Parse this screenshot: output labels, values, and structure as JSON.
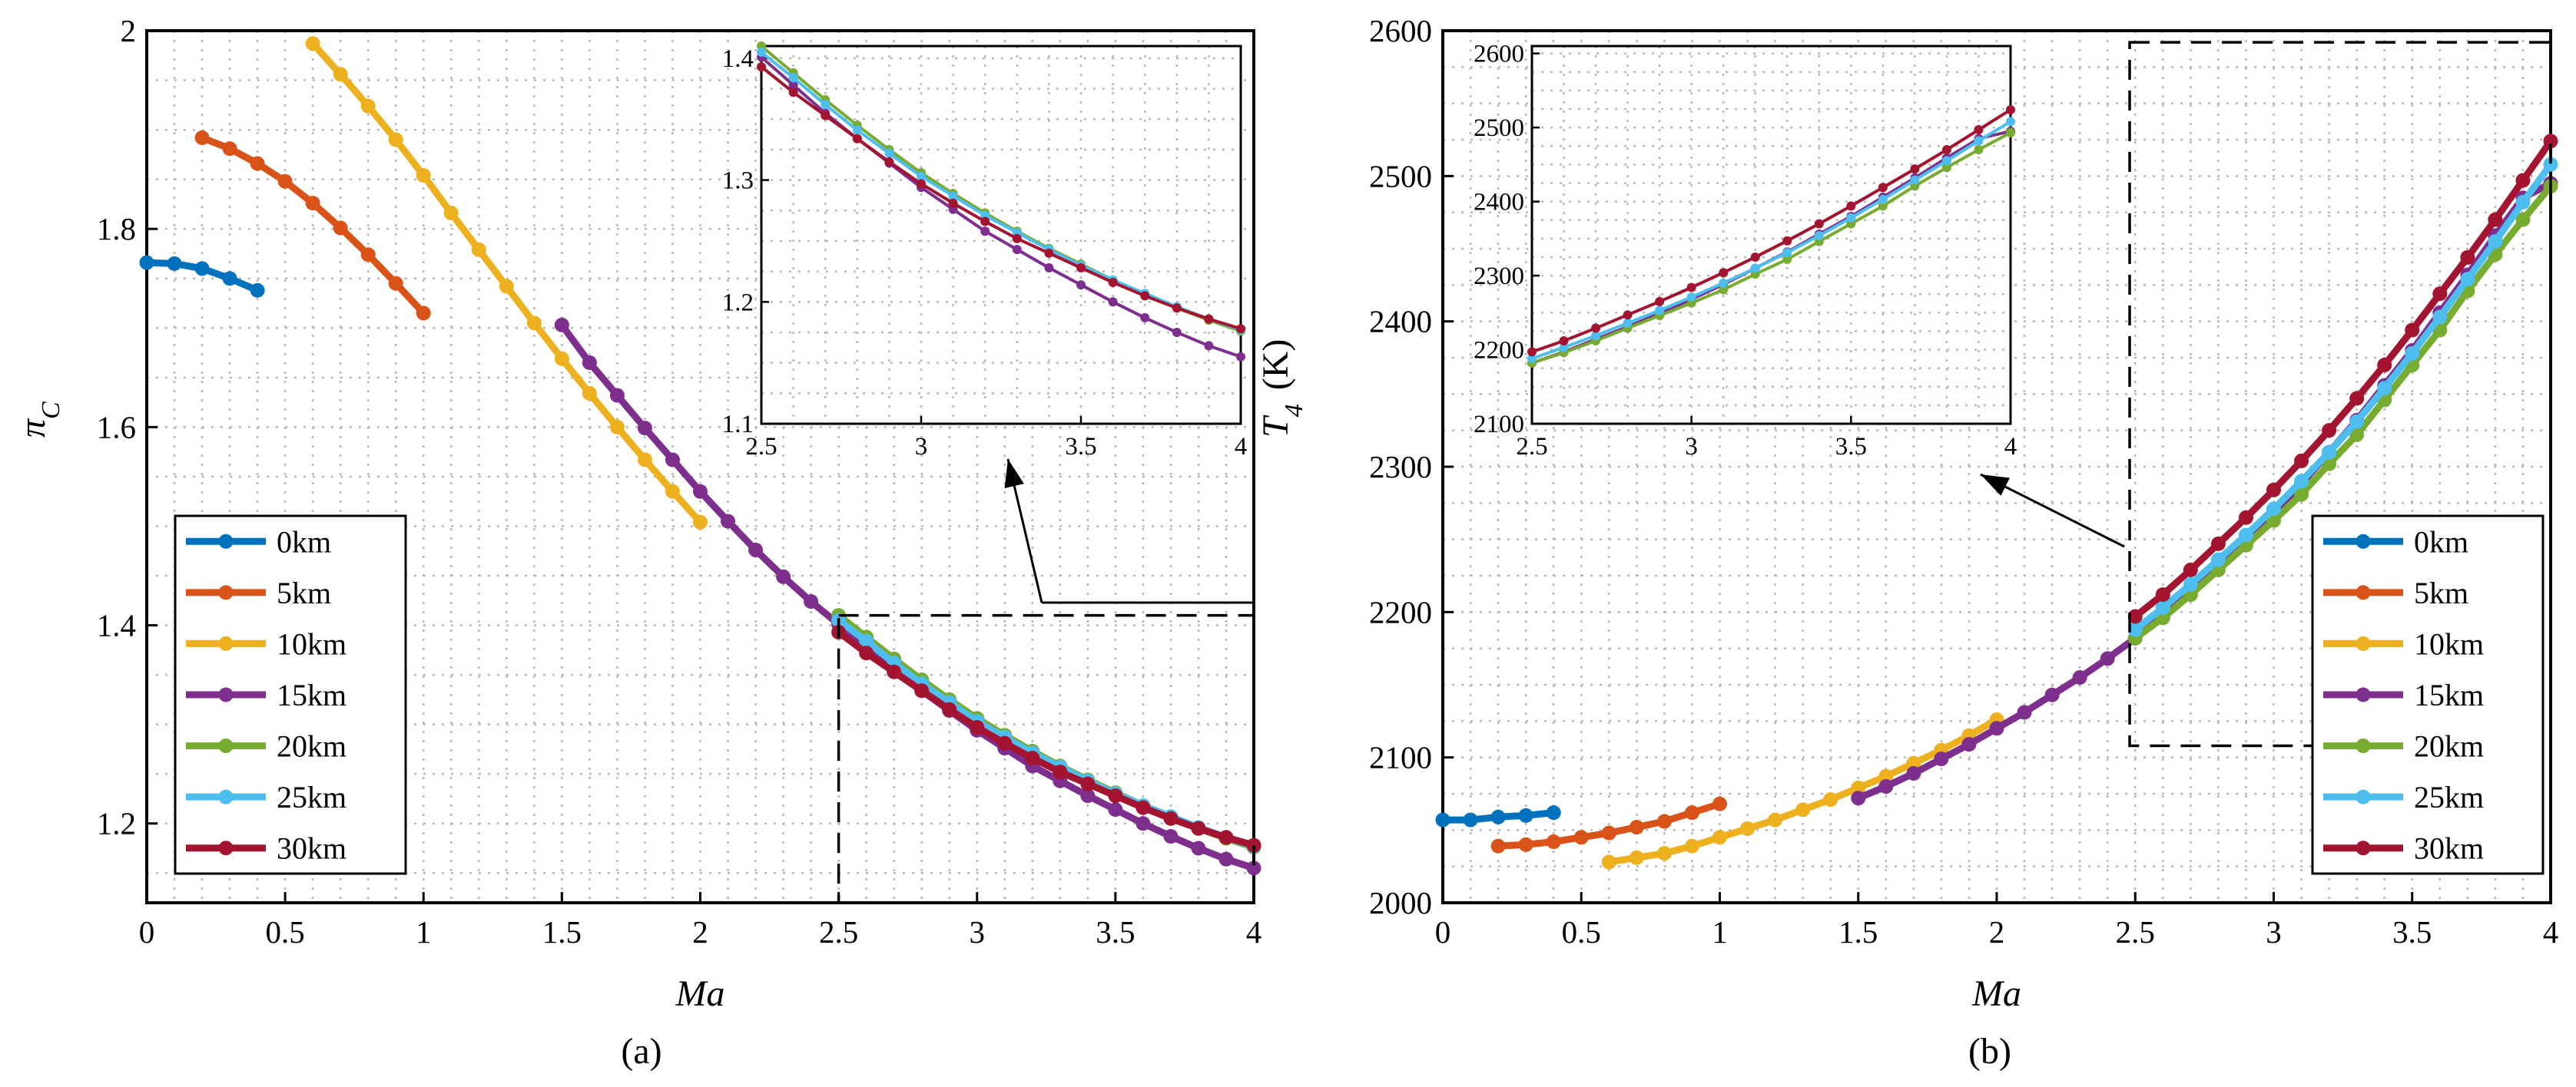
{
  "colors": {
    "0km": "#0072BD",
    "5km": "#D95319",
    "10km": "#EDB120",
    "15km": "#7E2F8E",
    "20km": "#77AC30",
    "25km": "#4DBEEE",
    "30km": "#A2142F"
  },
  "chart_data": [
    {
      "type": "line",
      "panel": "a",
      "caption": "(a)",
      "xlabel": "Ma",
      "ylabel": "π",
      "ylabel_sub": "C",
      "xlim": [
        0,
        4
      ],
      "ylim": [
        1.12,
        2.0
      ],
      "xticks": [
        "0",
        "0.5",
        "1",
        "1.5",
        "2",
        "2.5",
        "3",
        "3.5",
        "4"
      ],
      "yticks": [
        "1.2",
        "1.4",
        "1.6",
        "1.8",
        "2"
      ],
      "legend_position": "bottom-left",
      "series": [
        {
          "name": "0km",
          "x": [
            0,
            0.1,
            0.2,
            0.3,
            0.4
          ],
          "y": [
            1.766,
            1.765,
            1.76,
            1.75,
            1.738
          ]
        },
        {
          "name": "5km",
          "x": [
            0.2,
            0.3,
            0.4,
            0.5,
            0.6,
            0.7,
            0.8,
            0.9,
            1.0
          ],
          "y": [
            1.892,
            1.881,
            1.866,
            1.848,
            1.826,
            1.801,
            1.774,
            1.745,
            1.715
          ]
        },
        {
          "name": "10km",
          "x": [
            0.6,
            0.7,
            0.8,
            0.9,
            1.0,
            1.1,
            1.2,
            1.3,
            1.4,
            1.5,
            1.6,
            1.7,
            1.8,
            1.9,
            2.0
          ],
          "y": [
            1.987,
            1.956,
            1.924,
            1.89,
            1.854,
            1.816,
            1.779,
            1.742,
            1.705,
            1.669,
            1.634,
            1.6,
            1.567,
            1.535,
            1.504
          ]
        },
        {
          "name": "15km",
          "x": [
            1.5,
            1.6,
            1.7,
            1.8,
            1.9,
            2.0,
            2.1,
            2.2,
            2.3,
            2.4,
            2.5,
            2.6,
            2.7,
            2.8,
            2.9,
            3.0,
            3.1,
            3.2,
            3.3,
            3.4,
            3.5,
            3.6,
            3.7,
            3.8,
            3.9,
            4.0
          ],
          "y": [
            1.703,
            1.665,
            1.632,
            1.599,
            1.567,
            1.535,
            1.505,
            1.476,
            1.449,
            1.424,
            1.401,
            1.378,
            1.355,
            1.334,
            1.314,
            1.294,
            1.276,
            1.258,
            1.243,
            1.228,
            1.214,
            1.2,
            1.187,
            1.175,
            1.164,
            1.155
          ]
        },
        {
          "name": "20km",
          "x": [
            2.5,
            2.6,
            2.7,
            2.8,
            2.9,
            3.0,
            3.1,
            3.2,
            3.3,
            3.4,
            3.5,
            3.6,
            3.7,
            3.8,
            3.9,
            4.0
          ],
          "y": [
            1.41,
            1.388,
            1.366,
            1.345,
            1.325,
            1.306,
            1.289,
            1.273,
            1.258,
            1.244,
            1.231,
            1.218,
            1.206,
            1.195,
            1.185,
            1.176
          ]
        },
        {
          "name": "25km",
          "x": [
            2.5,
            2.6,
            2.7,
            2.8,
            2.9,
            3.0,
            3.1,
            3.2,
            3.3,
            3.4,
            3.5,
            3.6,
            3.7,
            3.8,
            3.9,
            4.0
          ],
          "y": [
            1.405,
            1.384,
            1.362,
            1.341,
            1.322,
            1.303,
            1.287,
            1.271,
            1.257,
            1.243,
            1.23,
            1.218,
            1.207,
            1.196,
            1.186,
            1.177
          ]
        },
        {
          "name": "30km",
          "x": [
            2.5,
            2.6,
            2.7,
            2.8,
            2.9,
            3.0,
            3.1,
            3.2,
            3.3,
            3.4,
            3.5,
            3.6,
            3.7,
            3.8,
            3.9,
            4.0
          ],
          "y": [
            1.393,
            1.372,
            1.353,
            1.334,
            1.315,
            1.297,
            1.281,
            1.266,
            1.252,
            1.24,
            1.228,
            1.216,
            1.205,
            1.195,
            1.186,
            1.178
          ]
        }
      ],
      "zoom_box": {
        "xlim": [
          2.5,
          4.0
        ],
        "ylim": [
          1.12,
          1.41
        ]
      },
      "inset": {
        "xlim": [
          2.5,
          4.0
        ],
        "ylim": [
          1.1,
          1.41
        ],
        "xticks": [
          "2.5",
          "3",
          "3.5",
          "4"
        ],
        "yticks": [
          "1.1",
          "1.2",
          "1.3",
          "1.4"
        ],
        "series": [
          "15km",
          "20km",
          "25km",
          "30km"
        ]
      }
    },
    {
      "type": "line",
      "panel": "b",
      "caption": "(b)",
      "xlabel": "Ma",
      "ylabel": "T",
      "ylabel_sub": "4",
      "ylabel_unit": "(K)",
      "xlim": [
        0,
        4
      ],
      "ylim": [
        2000,
        2600
      ],
      "xticks": [
        "0",
        "0.5",
        "1",
        "1.5",
        "2",
        "2.5",
        "3",
        "3.5",
        "4"
      ],
      "yticks": [
        "2000",
        "2100",
        "2200",
        "2300",
        "2400",
        "2500",
        "2600"
      ],
      "legend_position": "bottom-right",
      "series": [
        {
          "name": "0km",
          "x": [
            0,
            0.1,
            0.2,
            0.3,
            0.4
          ],
          "y": [
            2057,
            2057,
            2059,
            2060,
            2062
          ]
        },
        {
          "name": "5km",
          "x": [
            0.2,
            0.3,
            0.4,
            0.5,
            0.6,
            0.7,
            0.8,
            0.9,
            1.0
          ],
          "y": [
            2039,
            2040,
            2042,
            2045,
            2048,
            2052,
            2056,
            2062,
            2068
          ]
        },
        {
          "name": "10km",
          "x": [
            0.6,
            0.7,
            0.8,
            0.9,
            1.0,
            1.1,
            1.2,
            1.3,
            1.4,
            1.5,
            1.6,
            1.7,
            1.8,
            1.9,
            2.0
          ],
          "y": [
            2028,
            2031,
            2034,
            2039,
            2045,
            2051,
            2057,
            2064,
            2071,
            2079,
            2087,
            2096,
            2105,
            2115,
            2126
          ]
        },
        {
          "name": "15km",
          "x": [
            1.5,
            1.6,
            1.7,
            1.8,
            1.9,
            2.0,
            2.1,
            2.2,
            2.3,
            2.4,
            2.5,
            2.6,
            2.7,
            2.8,
            2.9,
            3.0,
            3.1,
            3.2,
            3.3,
            3.4,
            3.5,
            3.6,
            3.7,
            3.8,
            3.9,
            4.0
          ],
          "y": [
            2072,
            2080,
            2089,
            2099,
            2109,
            2120,
            2131,
            2143,
            2155,
            2168,
            2182,
            2197,
            2214,
            2231,
            2249,
            2268,
            2288,
            2310,
            2332,
            2356,
            2380,
            2406,
            2432,
            2459,
            2485,
            2495
          ]
        },
        {
          "name": "20km",
          "x": [
            2.5,
            2.6,
            2.7,
            2.8,
            2.9,
            3.0,
            3.1,
            3.2,
            3.3,
            3.4,
            3.5,
            3.6,
            3.7,
            3.8,
            3.9,
            4.0
          ],
          "y": [
            2182,
            2196,
            2212,
            2229,
            2246,
            2263,
            2281,
            2302,
            2322,
            2346,
            2370,
            2394,
            2421,
            2446,
            2470,
            2493
          ]
        },
        {
          "name": "25km",
          "x": [
            2.5,
            2.6,
            2.7,
            2.8,
            2.9,
            3.0,
            3.1,
            3.2,
            3.3,
            3.4,
            3.5,
            3.6,
            3.7,
            3.8,
            3.9,
            4.0
          ],
          "y": [
            2188,
            2203,
            2219,
            2236,
            2253,
            2271,
            2290,
            2310,
            2331,
            2354,
            2378,
            2403,
            2429,
            2455,
            2482,
            2508
          ]
        },
        {
          "name": "30km",
          "x": [
            2.5,
            2.6,
            2.7,
            2.8,
            2.9,
            3.0,
            3.1,
            3.2,
            3.3,
            3.4,
            3.5,
            3.6,
            3.7,
            3.8,
            3.9,
            4.0
          ],
          "y": [
            2197,
            2212,
            2229,
            2247,
            2265,
            2284,
            2304,
            2325,
            2347,
            2370,
            2394,
            2419,
            2444,
            2470,
            2497,
            2524
          ]
        }
      ],
      "zoom_box": {
        "xlim": [
          2.48,
          4.0
        ],
        "ylim": [
          2108,
          2592
        ]
      },
      "inset": {
        "xlim": [
          2.5,
          4.0
        ],
        "ylim": [
          2100,
          2610
        ],
        "xticks": [
          "2.5",
          "3",
          "3.5",
          "4"
        ],
        "yticks": [
          "2100",
          "2200",
          "2300",
          "2400",
          "2500",
          "2600"
        ],
        "series": [
          "15km",
          "20km",
          "25km",
          "30km"
        ]
      }
    }
  ]
}
